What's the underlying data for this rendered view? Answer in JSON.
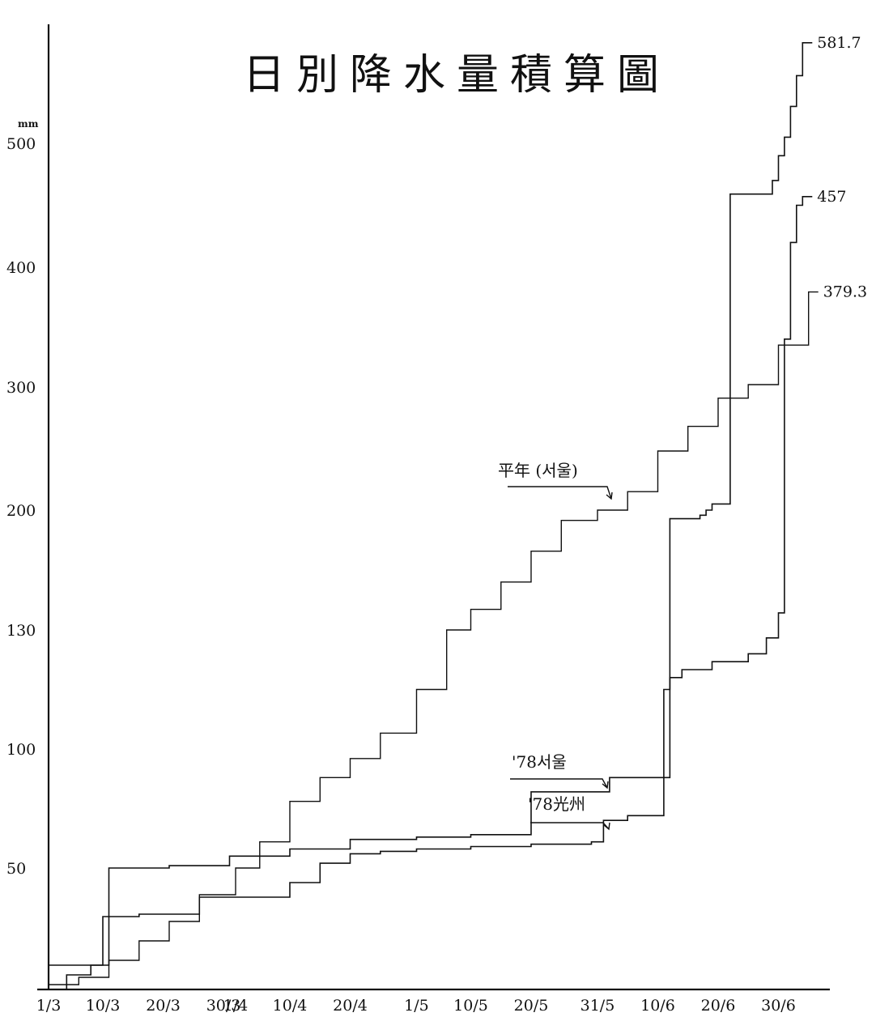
{
  "chart_data": {
    "type": "line",
    "title": "日別降水量積算圖",
    "ylabel": "mm",
    "xlabel": "",
    "y_ticks": [
      50,
      100,
      130,
      200,
      300,
      400,
      500
    ],
    "x_ticks": [
      "1/3",
      "10/3",
      "20/3",
      "30/3",
      "1/4",
      "10/4",
      "20/4",
      "1/5",
      "10/5",
      "20/5",
      "31/5",
      "10/6",
      "20/6",
      "30/6"
    ],
    "x_tick_days": [
      0,
      9,
      19,
      29,
      31,
      40,
      50,
      61,
      70,
      80,
      91,
      101,
      111,
      121
    ],
    "grid": false,
    "annotations": [
      {
        "text": "平年 (서울)",
        "series": 0
      },
      {
        "text": "'78서울",
        "series": 1
      },
      {
        "text": "'78光州",
        "series": 2
      }
    ],
    "end_labels": [
      "379.3",
      "581.7",
      "457"
    ],
    "series": [
      {
        "name": "平年 (서울)",
        "x": [
          0,
          5,
          10,
          15,
          20,
          25,
          31,
          35,
          40,
          45,
          50,
          55,
          61,
          66,
          70,
          75,
          80,
          85,
          91,
          96,
          101,
          106,
          111,
          116,
          121,
          126
        ],
        "y": [
          2,
          5,
          12,
          20,
          28,
          39,
          50,
          61,
          78,
          88,
          96,
          104,
          115,
          130,
          142,
          158,
          176,
          194,
          200,
          215,
          248,
          268,
          291,
          302,
          335,
          379.3
        ]
      },
      {
        "name": "'78서울",
        "x": [
          0,
          7,
          10,
          20,
          30,
          31,
          40,
          50,
          61,
          70,
          79,
          80,
          85,
          91,
          93,
          96,
          102,
          103,
          108,
          109,
          110,
          111,
          113,
          119,
          120,
          121,
          122,
          123,
          124,
          125
        ],
        "y": [
          10,
          10,
          50,
          51,
          55,
          55,
          58,
          62,
          63,
          64,
          64,
          82,
          82,
          82,
          88,
          88,
          88,
          195,
          197,
          200,
          205,
          205,
          459,
          459,
          470,
          490,
          505,
          530,
          555,
          581.7
        ]
      },
      {
        "name": "'78光州",
        "x": [
          0,
          3,
          7,
          9,
          15,
          25,
          31,
          40,
          45,
          50,
          55,
          61,
          70,
          80,
          90,
          92,
          96,
          101,
          102,
          103,
          105,
          110,
          116,
          119,
          121,
          122,
          123,
          124,
          125
        ],
        "y": [
          0,
          6,
          10,
          30,
          31,
          38,
          38,
          44,
          52,
          56,
          57,
          58,
          59,
          60,
          61,
          70,
          72,
          72,
          115,
          118,
          120,
          122,
          124,
          128,
          140,
          340,
          420,
          450,
          457
        ]
      }
    ]
  }
}
